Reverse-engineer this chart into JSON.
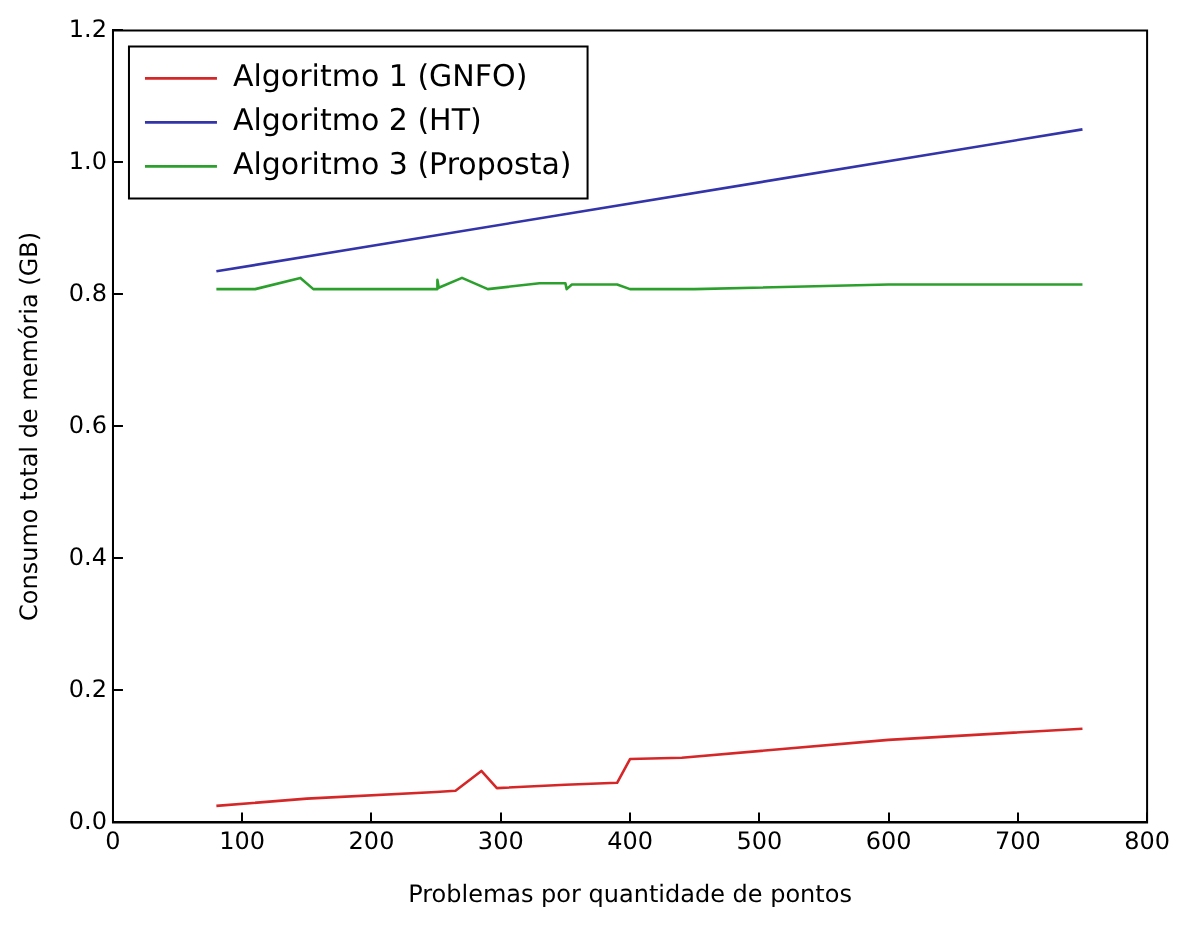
{
  "chart_data": {
    "type": "line",
    "xlabel": "Problemas por quantidade de pontos",
    "ylabel": "Consumo total de memória (GB)",
    "xlim": [
      0,
      800
    ],
    "xticks": [
      0,
      100,
      200,
      300,
      400,
      500,
      600,
      700,
      800
    ],
    "ylim": [
      0,
      1.2
    ],
    "yticks": [
      {
        "value": 0,
        "label": "0.0"
      },
      {
        "value": 0.2,
        "label": "0.2"
      },
      {
        "value": 0.4,
        "label": "0.4"
      },
      {
        "value": 0.6,
        "label": "0.6"
      },
      {
        "value": 0.8,
        "label": "0.8"
      },
      {
        "value": 1.0,
        "label": "1.0"
      },
      {
        "value": 1.2,
        "label": "1.2"
      }
    ],
    "grid": false,
    "legend": "top left",
    "marker": "none",
    "line_style": "solid",
    "series": [
      {
        "name": "Algoritmo 1 (GNFO)",
        "color": "#d62728",
        "x": [
          80,
          150,
          250,
          265,
          285,
          297,
          350,
          390,
          400,
          440,
          600,
          750
        ],
        "values": [
          0.025,
          0.036,
          0.046,
          0.048,
          0.078,
          0.052,
          0.057,
          0.06,
          0.096,
          0.098,
          0.125,
          0.142
        ]
      },
      {
        "name": "Algoritmo 2 (HT)",
        "color": "#3333aa",
        "x": [
          80,
          750
        ],
        "values": [
          0.835,
          1.05
        ]
      },
      {
        "name": "Algoritmo 3 (Proposta)",
        "color": "#2ca02c",
        "x": [
          80,
          110,
          145,
          155,
          250,
          251,
          252,
          270,
          290,
          330,
          350,
          351,
          355,
          390,
          400,
          450,
          600,
          750
        ],
        "values": [
          0.808,
          0.808,
          0.825,
          0.808,
          0.808,
          0.822,
          0.81,
          0.825,
          0.808,
          0.817,
          0.817,
          0.808,
          0.815,
          0.815,
          0.808,
          0.808,
          0.815,
          0.815
        ]
      }
    ]
  }
}
